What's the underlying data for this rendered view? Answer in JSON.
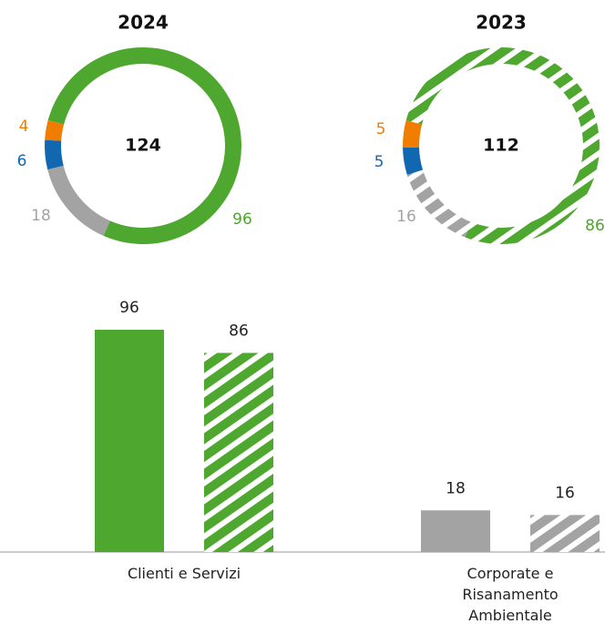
{
  "chart_data": [
    {
      "type": "donut",
      "title": "2024",
      "center_label": "124",
      "hatched": false,
      "values": [
        96,
        18,
        6,
        4
      ],
      "colors": [
        "#4ea72e",
        "#a3a3a3",
        "#1268b0",
        "#f07d00"
      ]
    },
    {
      "type": "donut",
      "title": "2023",
      "center_label": "112",
      "hatched": true,
      "values": [
        86,
        16,
        5,
        5
      ],
      "colors": [
        "#4ea72e",
        "#a3a3a3",
        "#1268b0",
        "#f07d00"
      ]
    },
    {
      "type": "bar",
      "categories": [
        "Clienti e Servizi",
        "Corporate e Risanamento Ambientale"
      ],
      "series": [
        {
          "hatched": false,
          "colors": [
            "#4ea72e",
            "#a3a3a3"
          ],
          "values": [
            96,
            18
          ]
        },
        {
          "hatched": true,
          "colors": [
            "#4ea72e",
            "#a3a3a3"
          ],
          "values": [
            86,
            16
          ]
        }
      ]
    }
  ]
}
